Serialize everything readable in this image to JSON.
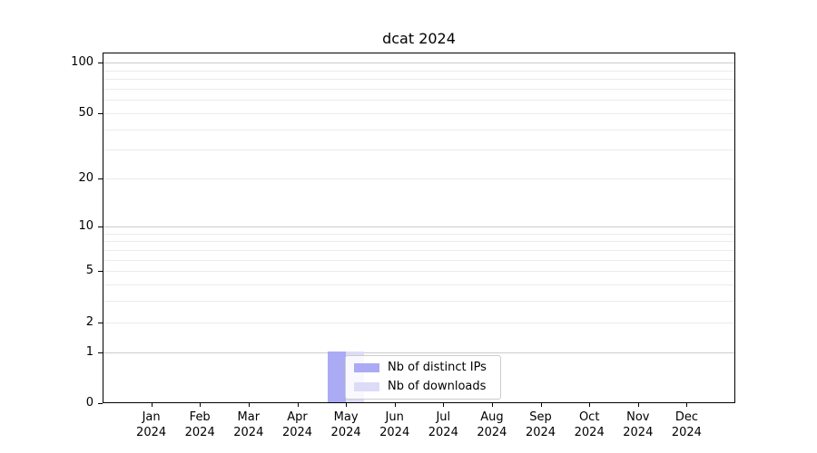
{
  "chart_data": {
    "type": "bar",
    "title": "dcat 2024",
    "categories": [
      "Jan",
      "Feb",
      "Mar",
      "Apr",
      "May",
      "Jun",
      "Jul",
      "Aug",
      "Sep",
      "Oct",
      "Nov",
      "Dec"
    ],
    "x_year_label": "2024",
    "series": [
      {
        "name": "Nb of distinct IPs",
        "color": "#aaaaf5",
        "values": [
          0,
          0,
          0,
          0,
          1,
          0,
          0,
          0,
          0,
          0,
          0,
          0
        ]
      },
      {
        "name": "Nb of downloads",
        "color": "#dcdcf8",
        "values": [
          0,
          0,
          0,
          0,
          1,
          0,
          0,
          0,
          0,
          0,
          0,
          0
        ]
      }
    ],
    "xlabel": "",
    "ylabel": "",
    "yscale": "log1p",
    "ylim": [
      0,
      115
    ],
    "ytick_labels": [
      0,
      1,
      2,
      5,
      10,
      20,
      50,
      100
    ],
    "major_gridlines": [
      1,
      10,
      100
    ],
    "minor_gridlines": [
      2,
      3,
      4,
      5,
      6,
      7,
      8,
      9,
      20,
      30,
      40,
      50,
      60,
      70,
      80,
      90
    ],
    "grid": "horizontal",
    "legend_position": "inside lower-center",
    "colors": {
      "axis": "#000000",
      "major_grid": "#cccccc",
      "minor_grid": "#ebebeb",
      "text": "#000000",
      "background": "#ffffff"
    }
  }
}
